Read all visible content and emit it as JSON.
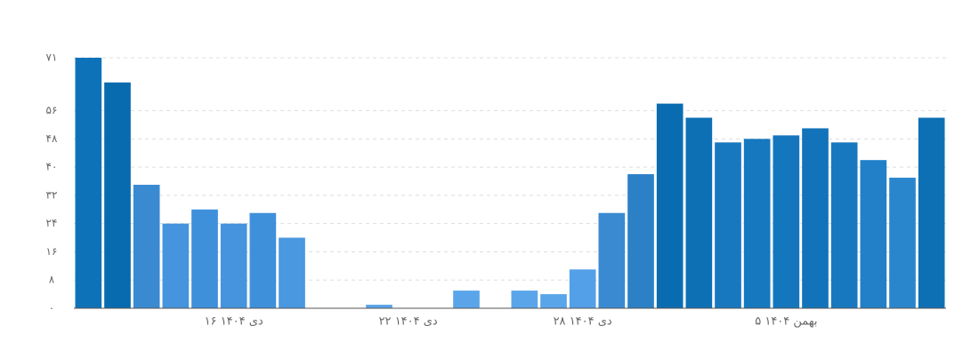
{
  "chart_data": {
    "type": "bar",
    "categories": [
      null,
      null,
      null,
      null,
      null,
      "۱۶ دی ۱۴۰۴",
      null,
      null,
      null,
      null,
      null,
      "۲۲ دی ۱۴۰۴",
      null,
      null,
      null,
      null,
      null,
      "۲۸ دی ۱۴۰۴",
      null,
      null,
      null,
      null,
      null,
      null,
      "۵ بهمن ۱۴۰۴",
      null,
      null,
      null,
      null,
      null
    ],
    "values": [
      71,
      64,
      35,
      24,
      28,
      24,
      27,
      20,
      0,
      0,
      1,
      0,
      0,
      5,
      0,
      5,
      4,
      11,
      27,
      38,
      58,
      54,
      47,
      48,
      49,
      51,
      47,
      42,
      37,
      54
    ],
    "colors": [
      "#0e72b8",
      "#086bb0",
      "#3a8ad2",
      "#4594dd",
      "#3f90db",
      "#4594dd",
      "#3f90db",
      "#4998e0",
      "#5aa5ea",
      "#5aa5ea",
      "#5aa5ea",
      "#5aa5ea",
      "#5aa5ea",
      "#5aa5ea",
      "#5aa5ea",
      "#5aa5ea",
      "#5aa5ea",
      "#53a0e8",
      "#3a8ad2",
      "#2c80c6",
      "#0a6cb0",
      "#0d70b5",
      "#1778c0",
      "#1678bf",
      "#1476bd",
      "#1273ba",
      "#1778c0",
      "#2180c8",
      "#2a86cc",
      "#0d70b5"
    ],
    "ylim": [
      0,
      71
    ],
    "yticks": [
      {
        "value": 0,
        "label": "۰"
      },
      {
        "value": 8,
        "label": "۸"
      },
      {
        "value": 16,
        "label": "۱۶"
      },
      {
        "value": 24,
        "label": "۲۴"
      },
      {
        "value": 32,
        "label": "۳۲"
      },
      {
        "value": 40,
        "label": "۴۰"
      },
      {
        "value": 48,
        "label": "۴۸"
      },
      {
        "value": 56,
        "label": "۵۶"
      },
      {
        "value": 71,
        "label": "۷۱"
      }
    ],
    "grid": true
  }
}
